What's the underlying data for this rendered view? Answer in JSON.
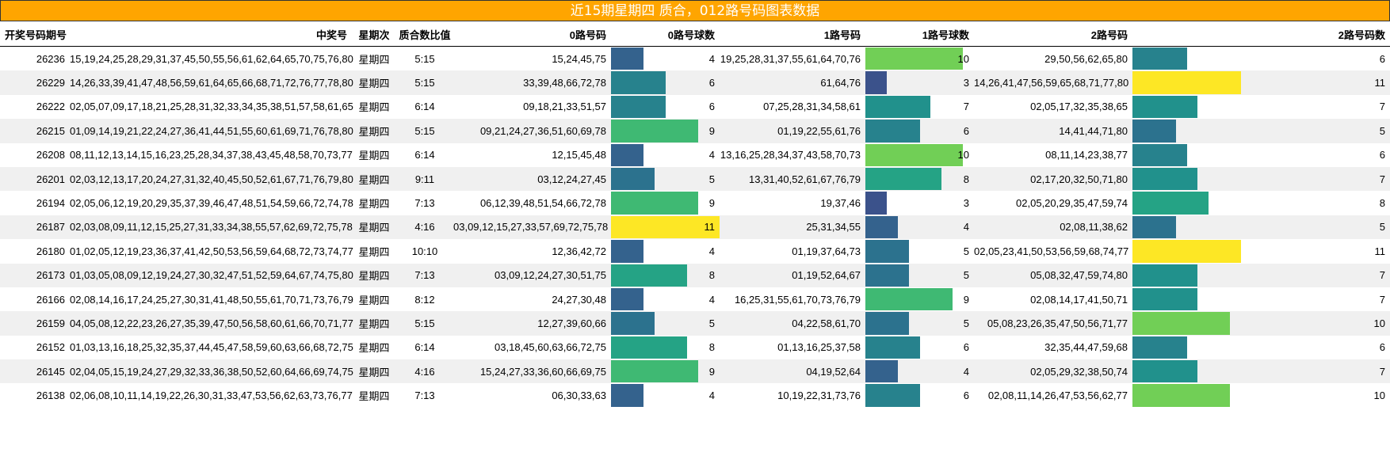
{
  "title": "近15期星期四 质合，012路号码图表数据",
  "headers": [
    "开奖号码期号",
    "中奖号",
    "星期次",
    "质合数比值",
    "0路号码",
    "0路号球数",
    "1路号码",
    "1路号球数",
    "2路号码",
    "2路号码数"
  ],
  "max_count": 11,
  "rows": [
    {
      "issue": "26236",
      "numbers": "15,19,24,25,28,29,31,37,45,50,55,56,61,62,64,65,70,75,76,80",
      "weekday": "星期四",
      "ratio": "5:15",
      "r0": "15,24,45,75",
      "c0": 4,
      "r1": "19,25,28,31,37,55,61,64,70,76",
      "c1": 10,
      "r2": "29,50,56,62,65,80",
      "c2": 6
    },
    {
      "issue": "26229",
      "numbers": "14,26,33,39,41,47,48,56,59,61,64,65,66,68,71,72,76,77,78,80",
      "weekday": "星期四",
      "ratio": "5:15",
      "r0": "33,39,48,66,72,78",
      "c0": 6,
      "r1": "61,64,76",
      "c1": 3,
      "r2": "14,26,41,47,56,59,65,68,71,77,80",
      "c2": 11
    },
    {
      "issue": "26222",
      "numbers": "02,05,07,09,17,18,21,25,28,31,32,33,34,35,38,51,57,58,61,65",
      "weekday": "星期四",
      "ratio": "6:14",
      "r0": "09,18,21,33,51,57",
      "c0": 6,
      "r1": "07,25,28,31,34,58,61",
      "c1": 7,
      "r2": "02,05,17,32,35,38,65",
      "c2": 7
    },
    {
      "issue": "26215",
      "numbers": "01,09,14,19,21,22,24,27,36,41,44,51,55,60,61,69,71,76,78,80",
      "weekday": "星期四",
      "ratio": "5:15",
      "r0": "09,21,24,27,36,51,60,69,78",
      "c0": 9,
      "r1": "01,19,22,55,61,76",
      "c1": 6,
      "r2": "14,41,44,71,80",
      "c2": 5
    },
    {
      "issue": "26208",
      "numbers": "08,11,12,13,14,15,16,23,25,28,34,37,38,43,45,48,58,70,73,77",
      "weekday": "星期四",
      "ratio": "6:14",
      "r0": "12,15,45,48",
      "c0": 4,
      "r1": "13,16,25,28,34,37,43,58,70,73",
      "c1": 10,
      "r2": "08,11,14,23,38,77",
      "c2": 6
    },
    {
      "issue": "26201",
      "numbers": "02,03,12,13,17,20,24,27,31,32,40,45,50,52,61,67,71,76,79,80",
      "weekday": "星期四",
      "ratio": "9:11",
      "r0": "03,12,24,27,45",
      "c0": 5,
      "r1": "13,31,40,52,61,67,76,79",
      "c1": 8,
      "r2": "02,17,20,32,50,71,80",
      "c2": 7
    },
    {
      "issue": "26194",
      "numbers": "02,05,06,12,19,20,29,35,37,39,46,47,48,51,54,59,66,72,74,78",
      "weekday": "星期四",
      "ratio": "7:13",
      "r0": "06,12,39,48,51,54,66,72,78",
      "c0": 9,
      "r1": "19,37,46",
      "c1": 3,
      "r2": "02,05,20,29,35,47,59,74",
      "c2": 8
    },
    {
      "issue": "26187",
      "numbers": "02,03,08,09,11,12,15,25,27,31,33,34,38,55,57,62,69,72,75,78",
      "weekday": "星期四",
      "ratio": "4:16",
      "r0": "03,09,12,15,27,33,57,69,72,75,78",
      "c0": 11,
      "r1": "25,31,34,55",
      "c1": 4,
      "r2": "02,08,11,38,62",
      "c2": 5
    },
    {
      "issue": "26180",
      "numbers": "01,02,05,12,19,23,36,37,41,42,50,53,56,59,64,68,72,73,74,77",
      "weekday": "星期四",
      "ratio": "10:10",
      "r0": "12,36,42,72",
      "c0": 4,
      "r1": "01,19,37,64,73",
      "c1": 5,
      "r2": "02,05,23,41,50,53,56,59,68,74,77",
      "c2": 11
    },
    {
      "issue": "26173",
      "numbers": "01,03,05,08,09,12,19,24,27,30,32,47,51,52,59,64,67,74,75,80",
      "weekday": "星期四",
      "ratio": "7:13",
      "r0": "03,09,12,24,27,30,51,75",
      "c0": 8,
      "r1": "01,19,52,64,67",
      "c1": 5,
      "r2": "05,08,32,47,59,74,80",
      "c2": 7
    },
    {
      "issue": "26166",
      "numbers": "02,08,14,16,17,24,25,27,30,31,41,48,50,55,61,70,71,73,76,79",
      "weekday": "星期四",
      "ratio": "8:12",
      "r0": "24,27,30,48",
      "c0": 4,
      "r1": "16,25,31,55,61,70,73,76,79",
      "c1": 9,
      "r2": "02,08,14,17,41,50,71",
      "c2": 7
    },
    {
      "issue": "26159",
      "numbers": "04,05,08,12,22,23,26,27,35,39,47,50,56,58,60,61,66,70,71,77",
      "weekday": "星期四",
      "ratio": "5:15",
      "r0": "12,27,39,60,66",
      "c0": 5,
      "r1": "04,22,58,61,70",
      "c1": 5,
      "r2": "05,08,23,26,35,47,50,56,71,77",
      "c2": 10
    },
    {
      "issue": "26152",
      "numbers": "01,03,13,16,18,25,32,35,37,44,45,47,58,59,60,63,66,68,72,75",
      "weekday": "星期四",
      "ratio": "6:14",
      "r0": "03,18,45,60,63,66,72,75",
      "c0": 8,
      "r1": "01,13,16,25,37,58",
      "c1": 6,
      "r2": "32,35,44,47,59,68",
      "c2": 6
    },
    {
      "issue": "26145",
      "numbers": "02,04,05,15,19,24,27,29,32,33,36,38,50,52,60,64,66,69,74,75",
      "weekday": "星期四",
      "ratio": "4:16",
      "r0": "15,24,27,33,36,60,66,69,75",
      "c0": 9,
      "r1": "04,19,52,64",
      "c1": 4,
      "r2": "02,05,29,32,38,50,74",
      "c2": 7
    },
    {
      "issue": "26138",
      "numbers": "02,06,08,10,11,14,19,22,26,30,31,33,47,53,56,62,63,73,76,77",
      "weekday": "星期四",
      "ratio": "7:13",
      "r0": "06,30,33,63",
      "c0": 4,
      "r1": "10,19,22,31,73,76",
      "c1": 6,
      "r2": "02,08,11,14,26,47,53,56,62,77",
      "c2": 10
    }
  ]
}
